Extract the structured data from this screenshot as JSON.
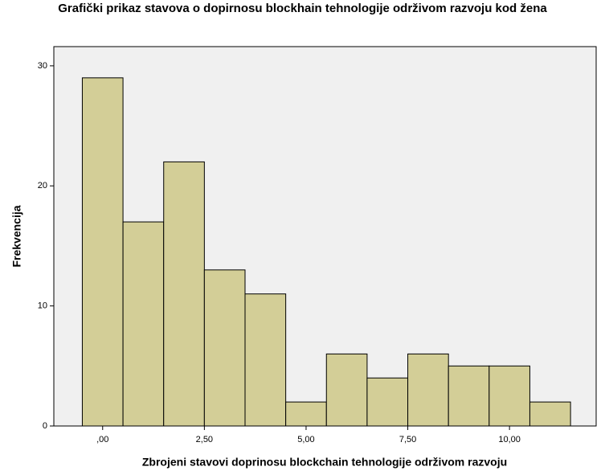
{
  "chart_data": {
    "type": "histogram",
    "title": "Grafički prikaz stavova o dopirnosu blockhain tehnologije održivom razvoju kod žena",
    "x_label": "Zbrojeni stavovi doprinosu blockchain tehnologije održivom razvoju",
    "y_label": "Frekvencija",
    "bins": [
      -0.5,
      0.5,
      1.5,
      2.5,
      3.5,
      4.5,
      5.5,
      6.5,
      7.5,
      8.5,
      9.5,
      10.5,
      11.5
    ],
    "counts": [
      29,
      17,
      22,
      13,
      11,
      2,
      6,
      4,
      6,
      5,
      5,
      2
    ],
    "color": "#d3ce97",
    "xlim": [
      -1.2,
      12.13
    ],
    "xticks": [
      {
        "value": 0,
        "label": ",00"
      },
      {
        "value": 2.5,
        "label": "2,50"
      },
      {
        "value": 5,
        "label": "5,00"
      },
      {
        "value": 7.5,
        "label": "7,50"
      },
      {
        "value": 10,
        "label": "10,00"
      }
    ],
    "ylim": [
      0,
      31.6
    ],
    "yticks": [
      0,
      10,
      20,
      30
    ]
  }
}
